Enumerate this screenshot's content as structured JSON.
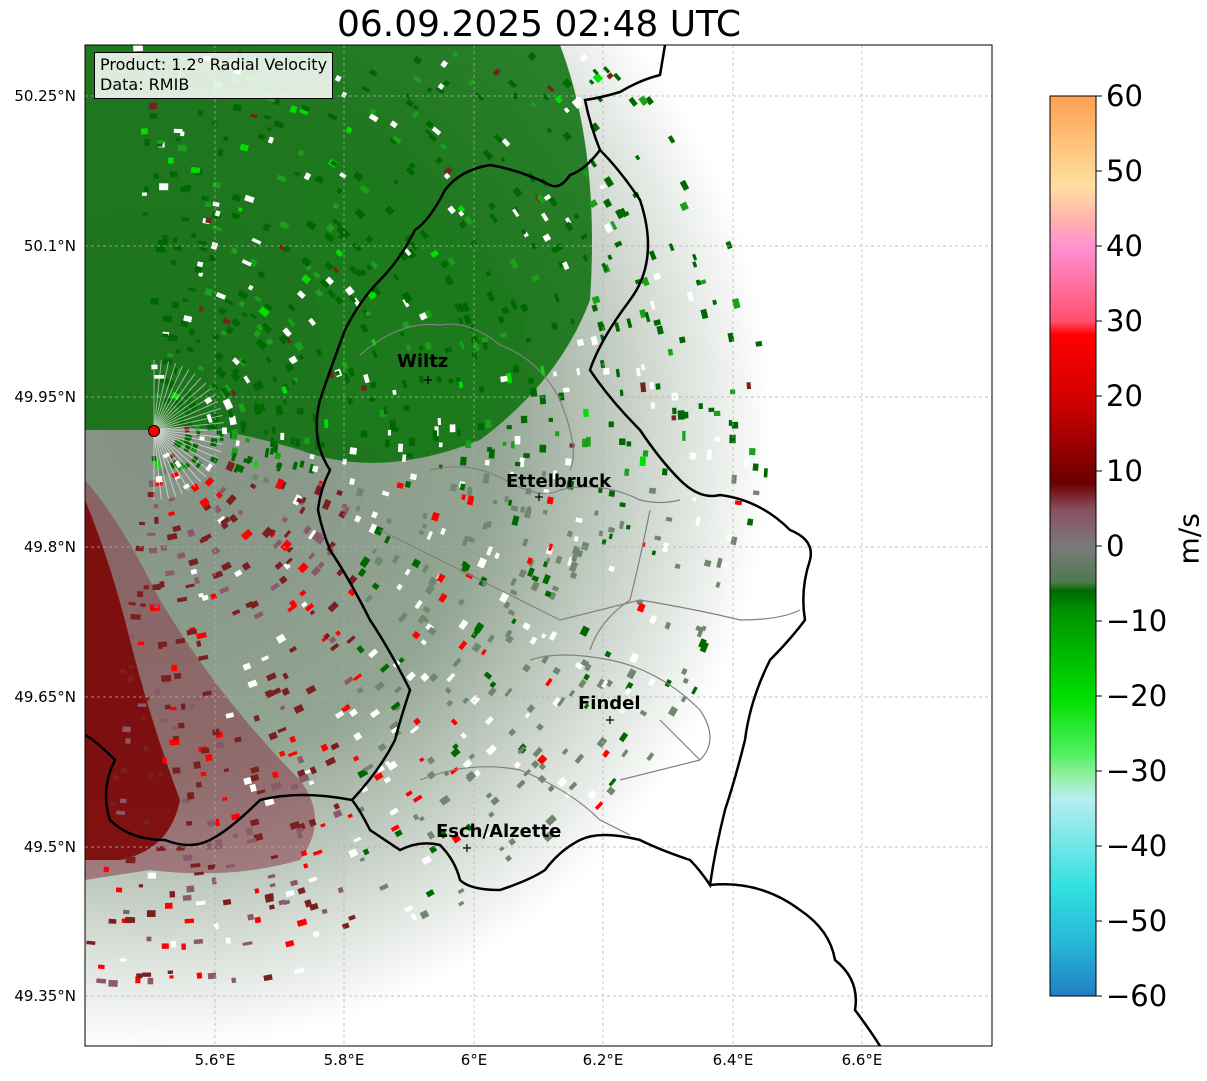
{
  "title": "06.09.2025 02:48 UTC",
  "info_box": {
    "product": "Product: 1.2° Radial Velocity",
    "source": "Data: RMIB"
  },
  "lat_labels": [
    "50.25°N",
    "50.1°N",
    "49.95°N",
    "49.8°N",
    "49.65°N",
    "49.5°N",
    "49.35°N"
  ],
  "lon_labels": [
    "5.6°E",
    "5.8°E",
    "6°E",
    "6.2°E",
    "6.4°E",
    "6.6°E"
  ],
  "cities": [
    {
      "name": "Wiltz"
    },
    {
      "name": "Ettelbruck"
    },
    {
      "name": "Findel"
    },
    {
      "name": "Esch/Alzette"
    }
  ],
  "radar_site_color": "#ff0000",
  "colorbar": {
    "unit": "m/s",
    "min": -60,
    "max": 60,
    "ticks": [
      "60",
      "50",
      "40",
      "30",
      "20",
      "10",
      "0",
      "−10",
      "−20",
      "−30",
      "−40",
      "−50",
      "−60"
    ],
    "colors": {
      "neg_blue": "#1f7fc4",
      "neg_cyan": "#30e0e0",
      "neg_lightcyan": "#b8eef0",
      "neg_lightgreen": "#90f0a0",
      "neg_green": "#00e000",
      "neg_darkgreen": "#006800",
      "zero_gray": "#7a7a7a",
      "pos_brown": "#7a2020",
      "pos_red": "#ff0000",
      "pos_pink": "#ff7fc0",
      "pos_peach": "#ffe0a0",
      "pos_orange": "#ffa050"
    }
  }
}
